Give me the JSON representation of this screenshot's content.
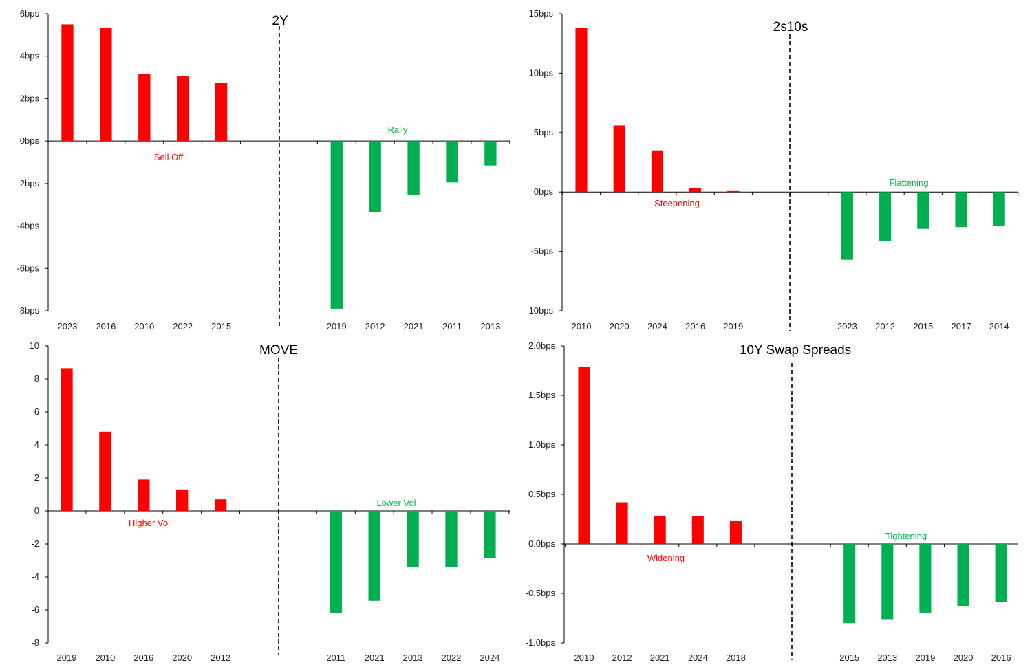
{
  "chart_data": [
    {
      "type": "bar",
      "title": "2Y",
      "ylim": [
        -8,
        6
      ],
      "ytick_values": [
        6,
        4,
        2,
        0,
        -2,
        -4,
        -6,
        -8
      ],
      "ytick_labels": [
        "6bps",
        "4bps",
        "2bps",
        "0bps",
        "-2bps",
        "-4bps",
        "-6bps",
        "-8bps"
      ],
      "categories": [
        "2023",
        "2016",
        "2010",
        "2022",
        "2015",
        "",
        "",
        "2019",
        "2012",
        "2021",
        "2011",
        "2013"
      ],
      "values": [
        5.5,
        5.35,
        3.15,
        3.05,
        2.75,
        null,
        null,
        -7.9,
        -3.35,
        -2.55,
        -1.95,
        -1.15
      ],
      "annotations": {
        "positive": "Sell Off",
        "negative": "Rally"
      },
      "colors": {
        "positive": "#ff0000",
        "negative": "#00b050"
      },
      "legend": "none",
      "grid": false
    },
    {
      "type": "bar",
      "title": "2s10s",
      "ylim": [
        -10,
        15
      ],
      "ytick_values": [
        15,
        10,
        5,
        0,
        -5,
        -10
      ],
      "ytick_labels": [
        "15bps",
        "10bps",
        "5bps",
        "0bps",
        "-5bps",
        "-10bps"
      ],
      "categories": [
        "2010",
        "2020",
        "2024",
        "2016",
        "2019",
        "",
        "",
        "2023",
        "2012",
        "2015",
        "2017",
        "2014"
      ],
      "values": [
        13.8,
        5.6,
        3.5,
        0.3,
        0.08,
        null,
        null,
        -5.7,
        -4.15,
        -3.1,
        -2.95,
        -2.85
      ],
      "annotations": {
        "positive": "Steepening",
        "negative": "Flattening"
      },
      "colors": {
        "positive": "#ff0000",
        "negative": "#00b050"
      },
      "legend": "none",
      "grid": false
    },
    {
      "type": "bar",
      "title": "MOVE",
      "ylim": [
        -8,
        10
      ],
      "ytick_values": [
        10,
        8,
        6,
        4,
        2,
        0,
        -2,
        -4,
        -6,
        -8
      ],
      "ytick_labels": [
        "10",
        "8",
        "6",
        "4",
        "2",
        "0",
        "-2",
        "-4",
        "-6",
        "-8"
      ],
      "categories": [
        "2019",
        "2010",
        "2016",
        "2020",
        "2012",
        "",
        "",
        "2011",
        "2021",
        "2013",
        "2022",
        "2024"
      ],
      "values": [
        8.65,
        4.8,
        1.9,
        1.3,
        0.7,
        null,
        null,
        -6.2,
        -5.45,
        -3.4,
        -3.4,
        -2.85
      ],
      "annotations": {
        "positive": "Higher Vol",
        "negative": "Lower Vol"
      },
      "colors": {
        "positive": "#ff0000",
        "negative": "#00b050"
      },
      "legend": "none",
      "grid": false
    },
    {
      "type": "bar",
      "title": "10Y Swap Spreads",
      "ylim": [
        -1.0,
        2.0
      ],
      "ytick_values": [
        2.0,
        1.5,
        1.0,
        0.5,
        0.0,
        -0.5,
        -1.0
      ],
      "ytick_labels": [
        "2.0bps",
        "1.5bps",
        "1.0bps",
        "0.5bps",
        "0.0bps",
        "-0.5bps",
        "-1.0bps"
      ],
      "categories": [
        "2010",
        "2012",
        "2021",
        "2024",
        "2018",
        "",
        "",
        "2015",
        "2013",
        "2019",
        "2020",
        "2016"
      ],
      "values": [
        1.79,
        0.42,
        0.28,
        0.28,
        0.23,
        null,
        null,
        -0.8,
        -0.76,
        -0.7,
        -0.63,
        -0.59
      ],
      "annotations": {
        "positive": "Widening",
        "negative": "Tightening"
      },
      "colors": {
        "positive": "#ff0000",
        "negative": "#00b050"
      },
      "legend": "none",
      "grid": false
    }
  ]
}
